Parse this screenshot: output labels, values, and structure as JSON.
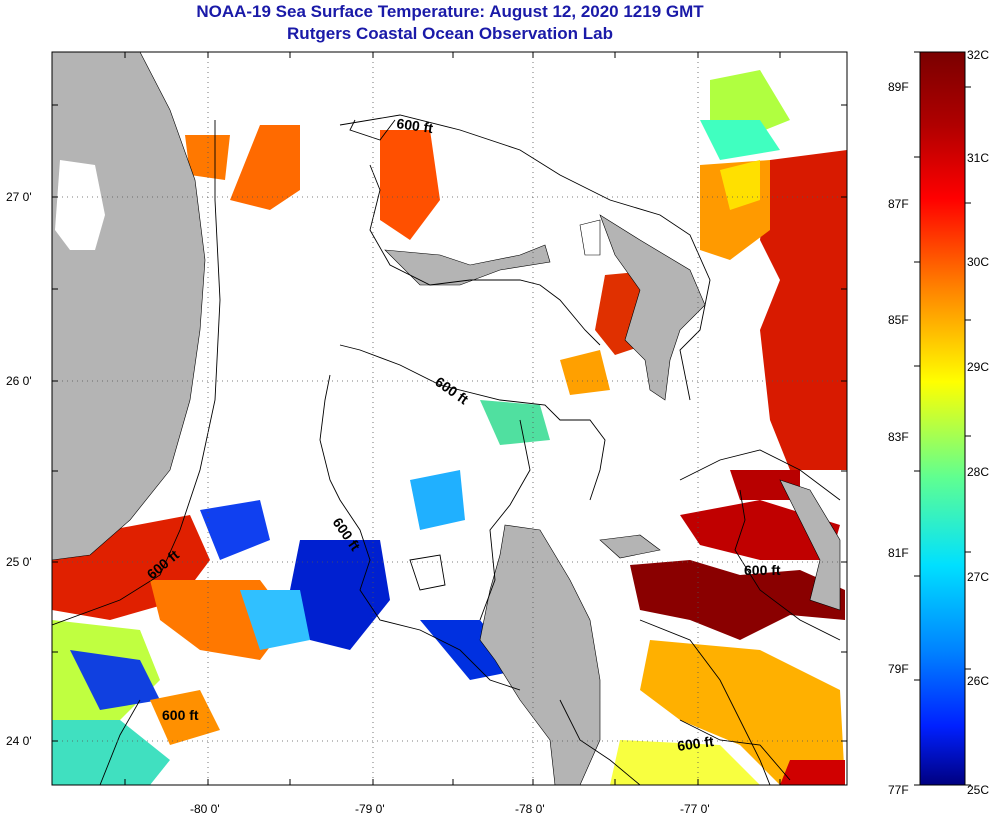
{
  "title": "NOAA-19 Sea Surface Temperature:  August 12, 2020 1219 GMT",
  "subtitle": "Rutgers Coastal Ocean Observation Lab",
  "map": {
    "lon_labels": [
      "-80 0'",
      "-79 0'",
      "-78 0'",
      "-77 0'"
    ],
    "lat_labels": [
      "27 0'",
      "26 0'",
      "25 0'",
      "24 0'"
    ],
    "contour_labels": [
      "600 ft",
      "600 ft",
      "600 ft",
      "600 ft",
      "600 ft",
      "600 ft"
    ]
  },
  "colorbar": {
    "celsius": [
      "32C",
      "31C",
      "30C",
      "29C",
      "28C",
      "27C",
      "26C",
      "25C"
    ],
    "fahrenheit": [
      "89F",
      "87F",
      "85F",
      "83F",
      "81F",
      "79F",
      "77F"
    ],
    "colors": [
      "#7a0000",
      "#d40000",
      "#ff4000",
      "#ffa000",
      "#ffff00",
      "#60ff90",
      "#00e0ff",
      "#0080ff",
      "#0020ff",
      "#000080"
    ]
  },
  "colors": {
    "land": "#b4b4b4",
    "title": "#1a1aa8"
  }
}
